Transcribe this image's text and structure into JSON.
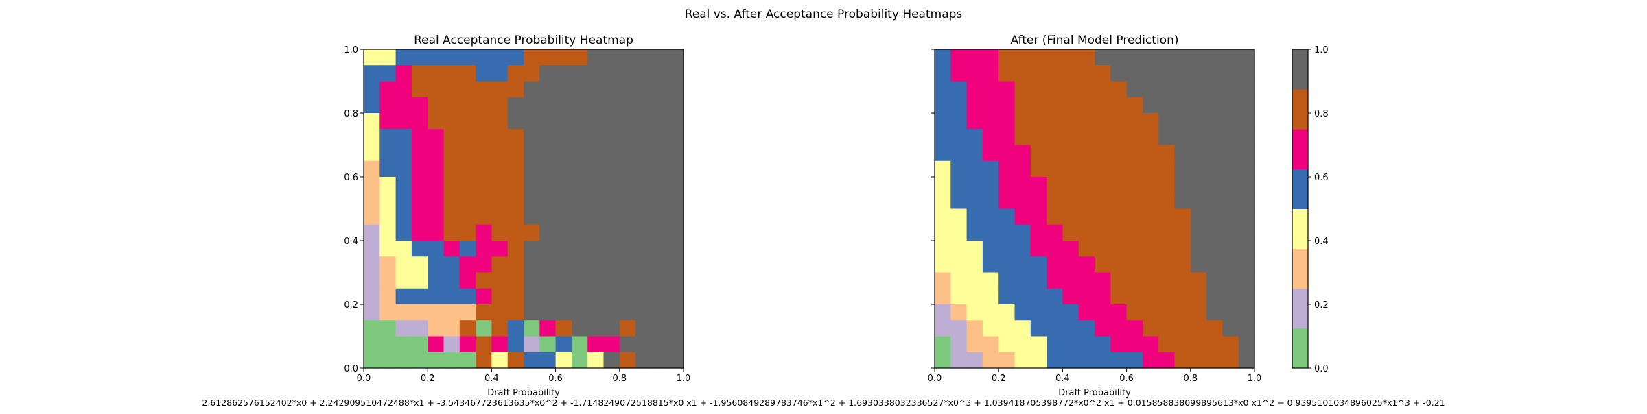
{
  "figure": {
    "title": "Real vs. After Acceptance Probability Heatmaps",
    "formula": "2.612862576152402*x0 + 2.242909510472488*x1 + -3.543467723613635*x0^2 + -1.7148249072518815*x0 x1 + -1.9560849289783746*x1^2 + 1.6930338032336527*x0^3 + 1.039418705398772*x0^2 x1 + 0.015858838099895613*x0 x1^2 + 0.9395101034896025*x1^3 + -0.21"
  },
  "colors": {
    "palette": [
      "#7fc97f",
      "#beaed4",
      "#fdc086",
      "#ffff99",
      "#386cb0",
      "#f0027f",
      "#bf5b17",
      "#666666"
    ]
  },
  "chart_data": [
    {
      "type": "heatmap",
      "title": "Real Acceptance Probability Heatmap",
      "xlabel": "Draft Probability",
      "ylabel": "",
      "xlim": [
        0,
        1
      ],
      "ylim": [
        0,
        1
      ],
      "x_ticks": [
        "0.0",
        "0.2",
        "0.4",
        "0.6",
        "0.8",
        "1.0"
      ],
      "y_ticks": [
        "0.0",
        "0.2",
        "0.4",
        "0.6",
        "0.8",
        "1.0"
      ],
      "grid": false,
      "rows_top_to_bottom": [
        "33444444446666777777",
        "44566664466777777777",
        "45566666667777777777",
        "45556666677777777777",
        "35556666677777777777",
        "34455666667777777777",
        "34455666667777777777",
        "24455666667777777777",
        "23455666667777777777",
        "23455666667777777777",
        "23455666667777777777",
        "13455665666777777777",
        "13344545567777777777",
        "12334455667777777777",
        "12334456667777777777",
        "12444445667777777777",
        "12222226667777777777",
        "00112260640567776777",
        "00005156541040557777",
        "00000006364430376777"
      ]
    },
    {
      "type": "heatmap",
      "title": "After (Final Model Prediction)",
      "xlabel": "Draft Probability",
      "ylabel": "",
      "xlim": [
        0,
        1
      ],
      "ylim": [
        0,
        1
      ],
      "x_ticks": [
        "0.0",
        "0.2",
        "0.4",
        "0.6",
        "0.8",
        "1.0"
      ],
      "y_ticks": [
        "",
        "",
        "",
        "",
        "",
        ""
      ],
      "grid": false,
      "rows_top_to_bottom": [
        "45556666667777777777",
        "45556666666777777777",
        "44555666666677777777",
        "44555666666667777777",
        "44555666666666777777",
        "44455666666666777777",
        "44455566666666677777",
        "34445566666666677777",
        "34445556666666677777",
        "34445556666666677777",
        "33444556666666667777",
        "33444455666666667777",
        "33344455566666667777",
        "33344445556666667777",
        "23334445555666666777",
        "23334444555666666777",
        "12333444455566666777",
        "11233344445556666677",
        "01223334444555666667",
        "01122334444445566667"
      ]
    }
  ],
  "colorbar": {
    "min": 0,
    "max": 1,
    "levels": 8,
    "ticks": [
      "0.0",
      "0.2",
      "0.4",
      "0.6",
      "0.8",
      "1.0"
    ]
  }
}
